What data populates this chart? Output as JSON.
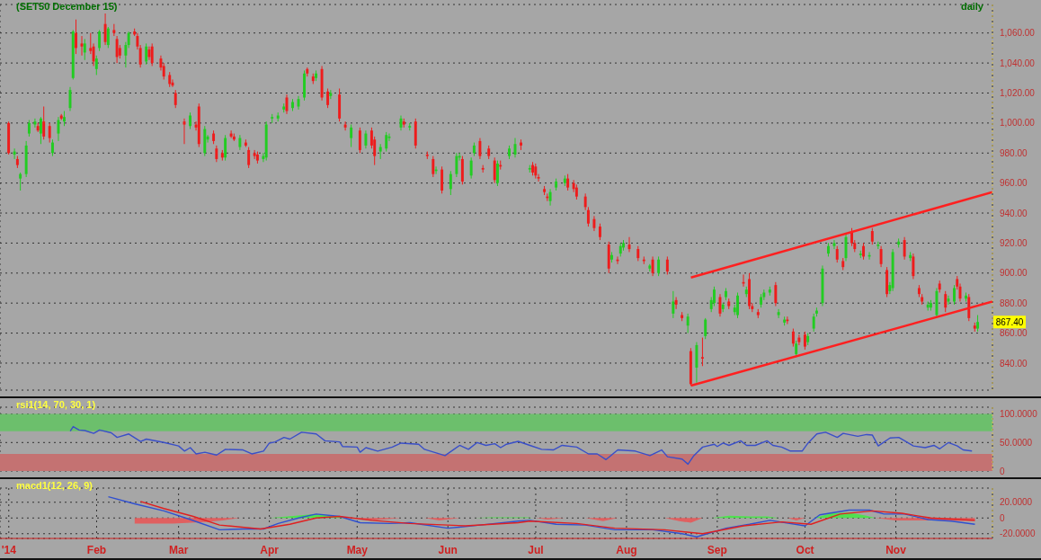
{
  "chart_data": [
    {
      "type": "candlestick",
      "title": "(SET50 December 15)",
      "annotations": [
        "daily",
        {
          "text": "867.40",
          "y": 867.4
        }
      ],
      "tick_labels": "y",
      "grid": true,
      "xlim": [
        "2013-12-30",
        "2014-12-04"
      ],
      "xticks": [
        {
          "value": "2014-01-02",
          "label": null
        },
        {
          "value": "2014-02-01",
          "label": null
        },
        {
          "value": "2014-03-01",
          "label": null
        },
        {
          "value": "2014-04-01",
          "label": null
        },
        {
          "value": "2014-05-01",
          "label": null
        },
        {
          "value": "2014-06-01",
          "label": null
        },
        {
          "value": "2014-07-01",
          "label": null
        },
        {
          "value": "2014-08-01",
          "label": null
        },
        {
          "value": "2014-09-01",
          "label": null
        },
        {
          "value": "2014-10-01",
          "label": null
        },
        {
          "value": "2014-11-01",
          "label": null
        }
      ],
      "ylim": [
        822,
        1079
      ],
      "yticks": [
        {
          "value": 840,
          "label": "840.00"
        },
        {
          "value": 860,
          "label": "860.00"
        },
        {
          "value": 880,
          "label": "880.00"
        },
        {
          "value": 900,
          "label": "900.00"
        },
        {
          "value": 920,
          "label": "920.00"
        },
        {
          "value": 940,
          "label": "940.00"
        },
        {
          "value": 960,
          "label": "960.00"
        },
        {
          "value": 980,
          "label": "980.00"
        },
        {
          "value": 1000,
          "label": "1,000.00"
        },
        {
          "value": 1020,
          "label": "1,020.00"
        },
        {
          "value": 1040,
          "label": "1,040.00"
        },
        {
          "value": 1060,
          "label": "1,060.00"
        }
      ],
      "x": [
        "2014-01-02",
        "2014-01-04",
        "2014-01-05",
        "2014-01-06",
        "2014-01-08",
        "2014-01-09",
        "2014-01-11",
        "2014-01-12",
        "2014-01-13",
        "2014-01-14",
        "2014-01-16",
        "2014-01-17",
        "2014-01-19",
        "2014-01-20",
        "2014-01-21",
        "2014-01-23",
        "2014-01-24",
        "2014-01-25",
        "2014-01-27",
        "2014-01-28",
        "2014-01-30",
        "2014-01-31",
        "2014-02-01",
        "2014-02-02",
        "2014-02-04",
        "2014-02-05",
        "2014-02-07",
        "2014-02-08",
        "2014-02-09",
        "2014-02-11",
        "2014-02-12",
        "2014-02-14",
        "2014-02-15",
        "2014-02-16",
        "2014-02-18",
        "2014-02-19",
        "2014-02-20",
        "2014-02-23",
        "2014-02-24",
        "2014-02-26",
        "2014-02-27",
        "2014-02-28",
        "2014-03-03",
        "2014-03-05",
        "2014-03-07",
        "2014-03-08",
        "2014-03-10",
        "2014-03-11",
        "2014-03-13",
        "2014-03-14",
        "2014-03-16",
        "2014-03-17",
        "2014-03-19",
        "2014-03-20",
        "2014-03-22",
        "2014-03-24",
        "2014-03-25",
        "2014-03-27",
        "2014-03-28",
        "2014-03-30",
        "2014-03-31",
        "2014-04-02",
        "2014-04-04",
        "2014-04-06",
        "2014-04-07",
        "2014-04-09",
        "2014-04-11",
        "2014-04-13",
        "2014-04-14",
        "2014-04-16",
        "2014-04-17",
        "2014-04-19",
        "2014-04-21",
        "2014-04-22",
        "2014-04-25",
        "2014-04-27",
        "2014-04-29",
        "2014-05-02",
        "2014-05-04",
        "2014-05-06",
        "2014-05-07",
        "2014-05-09",
        "2014-05-11",
        "2014-05-12",
        "2014-05-16",
        "2014-05-17",
        "2014-05-19",
        "2014-05-21",
        "2014-05-25",
        "2014-05-27",
        "2014-05-28",
        "2014-05-30",
        "2014-06-02",
        "2014-06-04",
        "2014-06-05",
        "2014-06-06",
        "2014-06-09",
        "2014-06-10",
        "2014-06-12",
        "2014-06-13",
        "2014-06-15",
        "2014-06-17",
        "2014-06-18",
        "2014-06-19",
        "2014-06-22",
        "2014-06-24",
        "2014-06-26",
        "2014-06-29",
        "2014-06-30",
        "2014-07-01",
        "2014-07-02",
        "2014-07-04",
        "2014-07-05",
        "2014-07-06",
        "2014-07-08",
        "2014-07-11",
        "2014-07-12",
        "2014-07-14",
        "2014-07-15",
        "2014-07-18",
        "2014-07-19",
        "2014-07-21",
        "2014-07-23",
        "2014-07-26",
        "2014-07-27",
        "2014-07-29",
        "2014-07-30",
        "2014-07-31",
        "2014-08-02",
        "2014-08-05",
        "2014-08-07",
        "2014-08-09",
        "2014-08-10",
        "2014-08-12",
        "2014-08-15",
        "2014-08-17",
        "2014-08-18",
        "2014-08-20",
        "2014-08-22",
        "2014-08-23",
        "2014-08-25",
        "2014-08-27",
        "2014-08-28",
        "2014-08-30",
        "2014-08-31",
        "2014-09-02",
        "2014-09-03",
        "2014-09-04",
        "2014-09-05",
        "2014-09-07",
        "2014-09-08",
        "2014-09-10",
        "2014-09-11",
        "2014-09-12",
        "2014-09-13",
        "2014-09-15",
        "2014-09-16",
        "2014-09-17",
        "2014-09-19",
        "2014-09-21",
        "2014-09-22",
        "2014-09-24",
        "2014-09-25",
        "2014-09-27",
        "2014-09-28",
        "2014-09-29",
        "2014-10-01",
        "2014-10-02",
        "2014-10-04",
        "2014-10-05",
        "2014-10-07",
        "2014-10-09",
        "2014-10-11",
        "2014-10-12",
        "2014-10-14",
        "2014-10-15",
        "2014-10-17",
        "2014-10-18",
        "2014-10-20",
        "2014-10-21",
        "2014-10-23",
        "2014-10-24",
        "2014-10-26",
        "2014-10-27",
        "2014-10-29",
        "2014-10-30",
        "2014-10-31",
        "2014-11-02",
        "2014-11-04",
        "2014-11-06",
        "2014-11-07",
        "2014-11-09",
        "2014-11-10",
        "2014-11-12",
        "2014-11-13",
        "2014-11-15",
        "2014-11-16",
        "2014-11-18",
        "2014-11-19",
        "2014-11-21",
        "2014-11-22",
        "2014-11-23",
        "2014-11-25",
        "2014-11-26",
        "2014-11-28",
        "2014-11-29"
      ],
      "ohlc": [
        [
          1000,
          1001,
          979,
          980
        ],
        [
          979,
          983,
          976,
          981
        ],
        [
          976,
          978,
          970,
          972
        ],
        [
          963,
          967,
          955,
          966
        ],
        [
          966,
          988,
          964,
          985
        ],
        [
          993,
          1002,
          991,
          1000
        ],
        [
          999,
          1003,
          997,
          1001
        ],
        [
          998,
          1000,
          994,
          995
        ],
        [
          993,
          1004,
          986,
          1003
        ],
        [
          1001,
          1011,
          989,
          991
        ],
        [
          998,
          1000,
          987,
          990
        ],
        [
          980,
          989,
          978,
          987
        ],
        [
          993,
          1004,
          988,
          1002
        ],
        [
          1005,
          1006,
          1002,
          1003
        ],
        [
          1001,
          1008,
          998,
          1004
        ],
        [
          1010,
          1024,
          1008,
          1022
        ],
        [
          1030,
          1062,
          1029,
          1061
        ],
        [
          1060,
          1069,
          1046,
          1050
        ],
        [
          1053,
          1058,
          1045,
          1051
        ],
        [
          1047,
          1056,
          1042,
          1053
        ],
        [
          1050,
          1060,
          1046,
          1048
        ],
        [
          1051,
          1053,
          1038,
          1041
        ],
        [
          1036,
          1045,
          1032,
          1043
        ],
        [
          1050,
          1062,
          1048,
          1061
        ],
        [
          1066,
          1073,
          1052,
          1054
        ],
        [
          1052,
          1064,
          1050,
          1063
        ],
        [
          1062,
          1066,
          1058,
          1060
        ],
        [
          1056,
          1058,
          1040,
          1044
        ],
        [
          1050,
          1052,
          1043,
          1045
        ],
        [
          1045,
          1054,
          1037,
          1052
        ],
        [
          1052,
          1061,
          1050,
          1060
        ],
        [
          1061,
          1063,
          1058,
          1059
        ],
        [
          1058,
          1060,
          1049,
          1051
        ],
        [
          1050,
          1052,
          1037,
          1039
        ],
        [
          1041,
          1053,
          1039,
          1051
        ],
        [
          1049,
          1051,
          1042,
          1044
        ],
        [
          1051,
          1053,
          1038,
          1040
        ],
        [
          1043,
          1045,
          1035,
          1037
        ],
        [
          1038,
          1040,
          1029,
          1031
        ],
        [
          1032,
          1034,
          1024,
          1026
        ],
        [
          1027,
          1029,
          1024,
          1025
        ],
        [
          1020,
          1022,
          1010,
          1012
        ],
        [
          1001,
          1003,
          986,
          999
        ],
        [
          998,
          1007,
          996,
          1005
        ],
        [
          999,
          1001,
          995,
          997
        ],
        [
          1011,
          1013,
          984,
          986
        ],
        [
          980,
          998,
          978,
          996
        ],
        [
          989,
          992,
          987,
          991
        ],
        [
          993,
          995,
          986,
          988
        ],
        [
          983,
          985,
          974,
          976
        ],
        [
          980,
          982,
          975,
          977
        ],
        [
          977,
          992,
          975,
          990
        ],
        [
          993,
          995,
          990,
          991
        ],
        [
          991,
          993,
          988,
          989
        ],
        [
          984,
          992,
          982,
          990
        ],
        [
          987,
          989,
          984,
          985
        ],
        [
          982,
          984,
          970,
          972
        ],
        [
          980,
          982,
          976,
          978
        ],
        [
          979,
          981,
          973,
          975
        ],
        [
          976,
          980,
          974,
          978
        ],
        [
          977,
          1001,
          975,
          999
        ],
        [
          1003,
          1006,
          1000,
          1004
        ],
        [
          1003,
          1007,
          1001,
          1005
        ],
        [
          1009,
          1013,
          1007,
          1011
        ],
        [
          1017,
          1019,
          1006,
          1008
        ],
        [
          1010,
          1016,
          1008,
          1014
        ],
        [
          1011,
          1018,
          1009,
          1016
        ],
        [
          1017,
          1035,
          1015,
          1033
        ],
        [
          1036,
          1037,
          1031,
          1033
        ],
        [
          1031,
          1033,
          1026,
          1028
        ],
        [
          1030,
          1035,
          1028,
          1033
        ],
        [
          1036,
          1038,
          1015,
          1017
        ],
        [
          1021,
          1023,
          1010,
          1012
        ],
        [
          1018,
          1022,
          1016,
          1020
        ],
        [
          1019,
          1023,
          1001,
          1003
        ],
        [
          999,
          1001,
          995,
          997
        ],
        [
          990,
          999,
          984,
          997
        ],
        [
          995,
          997,
          980,
          982
        ],
        [
          985,
          995,
          983,
          993
        ],
        [
          995,
          997,
          983,
          985
        ],
        [
          989,
          991,
          972,
          978
        ],
        [
          981,
          986,
          976,
          984
        ],
        [
          983,
          994,
          981,
          992
        ],
        [
          990,
          993,
          988,
          991
        ],
        [
          997,
          1005,
          995,
          1003
        ],
        [
          1001,
          1003,
          997,
          999
        ],
        [
          997,
          1000,
          995,
          998
        ],
        [
          1001,
          1003,
          983,
          985
        ],
        [
          979,
          981,
          976,
          978
        ],
        [
          976,
          978,
          964,
          966
        ],
        [
          968,
          971,
          966,
          969
        ],
        [
          969,
          971,
          953,
          955
        ],
        [
          956,
          968,
          952,
          966
        ],
        [
          966,
          980,
          964,
          978
        ],
        [
          977,
          980,
          975,
          978
        ],
        [
          976,
          978,
          959,
          961
        ],
        [
          965,
          977,
          963,
          975
        ],
        [
          980,
          987,
          978,
          985
        ],
        [
          988,
          990,
          976,
          978
        ],
        [
          970,
          972,
          967,
          969
        ],
        [
          983,
          985,
          976,
          978
        ],
        [
          975,
          977,
          960,
          962
        ],
        [
          960,
          975,
          958,
          973
        ],
        [
          972,
          975,
          969,
          971
        ],
        [
          978,
          985,
          976,
          983
        ],
        [
          979,
          990,
          977,
          986
        ],
        [
          987,
          989,
          982,
          985
        ],
        [
          969,
          972,
          967,
          970
        ],
        [
          972,
          974,
          965,
          967
        ],
        [
          971,
          973,
          963,
          965
        ],
        [
          964,
          966,
          961,
          963
        ],
        [
          956,
          958,
          952,
          954
        ],
        [
          951,
          953,
          948,
          950
        ],
        [
          948,
          956,
          945,
          954
        ],
        [
          957,
          963,
          955,
          961
        ],
        [
          960,
          965,
          958,
          963
        ],
        [
          963,
          966,
          955,
          957
        ],
        [
          960,
          962,
          954,
          956
        ],
        [
          957,
          959,
          949,
          951
        ],
        [
          951,
          953,
          942,
          944
        ],
        [
          942,
          944,
          931,
          933
        ],
        [
          936,
          938,
          928,
          930
        ],
        [
          931,
          933,
          922,
          924
        ],
        [
          919,
          921,
          900,
          903
        ],
        [
          909,
          914,
          907,
          912
        ],
        [
          909,
          911,
          906,
          908
        ],
        [
          913,
          920,
          911,
          918
        ],
        [
          917,
          922,
          915,
          920
        ],
        [
          919,
          924,
          914,
          916
        ],
        [
          916,
          918,
          908,
          910
        ],
        [
          909,
          911,
          906,
          908
        ],
        [
          903,
          906,
          901,
          905
        ],
        [
          909,
          911,
          898,
          900
        ],
        [
          900,
          911,
          898,
          909
        ],
        [
          909,
          911,
          899,
          901
        ],
        [
          873,
          888,
          870,
          881
        ],
        [
          882,
          884,
          876,
          879
        ],
        [
          872,
          874,
          868,
          870
        ],
        [
          865,
          873,
          860,
          871
        ],
        [
          848,
          850,
          825,
          826
        ],
        [
          837,
          854,
          827,
          852
        ],
        [
          844,
          857,
          838,
          843
        ],
        [
          858,
          870,
          856,
          869
        ],
        [
          876,
          884,
          874,
          882
        ],
        [
          880,
          891,
          878,
          889
        ],
        [
          884,
          886,
          871,
          873
        ],
        [
          876,
          880,
          874,
          879
        ],
        [
          884,
          890,
          882,
          888
        ],
        [
          881,
          883,
          876,
          878
        ],
        [
          874,
          879,
          872,
          877
        ],
        [
          872,
          887,
          870,
          885
        ],
        [
          894,
          899,
          891,
          893
        ],
        [
          886,
          891,
          884,
          889
        ],
        [
          896,
          900,
          876,
          878
        ],
        [
          878,
          880,
          874,
          876
        ],
        [
          874,
          876,
          870,
          872
        ],
        [
          879,
          886,
          877,
          884
        ],
        [
          884,
          889,
          882,
          887
        ],
        [
          887,
          891,
          885,
          889
        ],
        [
          892,
          894,
          878,
          880
        ],
        [
          872,
          876,
          870,
          874
        ],
        [
          867,
          871,
          865,
          869
        ],
        [
          869,
          871,
          866,
          868
        ],
        [
          861,
          863,
          851,
          853
        ],
        [
          846,
          855,
          844,
          853
        ],
        [
          857,
          859,
          852,
          854
        ],
        [
          859,
          861,
          849,
          851
        ],
        [
          854,
          860,
          852,
          858
        ],
        [
          863,
          873,
          861,
          871
        ],
        [
          873,
          877,
          871,
          875
        ],
        [
          880,
          905,
          878,
          903
        ],
        [
          913,
          920,
          911,
          918
        ],
        [
          918,
          922,
          916,
          920
        ],
        [
          916,
          918,
          907,
          909
        ],
        [
          908,
          910,
          902,
          904
        ],
        [
          910,
          926,
          908,
          924
        ],
        [
          927,
          930,
          918,
          920
        ],
        [
          920,
          922,
          914,
          916
        ],
        [
          912,
          915,
          910,
          913
        ],
        [
          918,
          920,
          909,
          911
        ],
        [
          911,
          914,
          909,
          912
        ],
        [
          928,
          930,
          919,
          921
        ],
        [
          918,
          921,
          916,
          919
        ],
        [
          916,
          918,
          904,
          906
        ],
        [
          902,
          904,
          884,
          886
        ],
        [
          888,
          894,
          886,
          892
        ],
        [
          890,
          916,
          888,
          914
        ],
        [
          919,
          923,
          917,
          921
        ],
        [
          922,
          924,
          909,
          911
        ],
        [
          910,
          914,
          908,
          912
        ],
        [
          911,
          913,
          896,
          898
        ],
        [
          890,
          892,
          884,
          886
        ],
        [
          884,
          886,
          879,
          881
        ],
        [
          877,
          881,
          875,
          879
        ],
        [
          877,
          882,
          875,
          880
        ],
        [
          872,
          890,
          870,
          888
        ],
        [
          893,
          895,
          887,
          889
        ],
        [
          886,
          888,
          874,
          877
        ],
        [
          881,
          885,
          879,
          883
        ],
        [
          881,
          892,
          879,
          890
        ],
        [
          896,
          898,
          889,
          891
        ],
        [
          891,
          893,
          881,
          883
        ],
        [
          883,
          887,
          881,
          885
        ],
        [
          884,
          886,
          868,
          870
        ],
        [
          865,
          867,
          861,
          863
        ],
        [
          863,
          872,
          861,
          867.4
        ]
      ],
      "series": [
        {
          "type": "line",
          "color": "#ff2020",
          "x": [
            "2014-08-23",
            "2014-12-04"
          ],
          "values": [
            897,
            954
          ]
        },
        {
          "type": "line",
          "color": "#ff2020",
          "x": [
            "2014-08-23",
            "2014-12-04"
          ],
          "values": [
            825,
            881
          ]
        }
      ]
    },
    {
      "type": "line",
      "title": "rsi1(14, 70, 30, 1)",
      "tick_labels": "y",
      "grid": true,
      "xlim": [
        "2013-12-30",
        "2014-12-04"
      ],
      "xticks": [
        {
          "value": "2014-01-02",
          "label": null
        },
        {
          "value": "2014-02-01",
          "label": null
        },
        {
          "value": "2014-03-01",
          "label": null
        },
        {
          "value": "2014-04-01",
          "label": null
        },
        {
          "value": "2014-05-01",
          "label": null
        },
        {
          "value": "2014-06-01",
          "label": null
        },
        {
          "value": "2014-07-01",
          "label": null
        },
        {
          "value": "2014-08-01",
          "label": null
        },
        {
          "value": "2014-09-01",
          "label": null
        },
        {
          "value": "2014-10-01",
          "label": null
        },
        {
          "value": "2014-11-01",
          "label": null
        }
      ],
      "ylim": [
        0,
        112
      ],
      "yticks": [
        0,
        {
          "value": 50,
          "label": "50.0000"
        },
        {
          "value": 100,
          "label": "100.0000"
        }
      ],
      "bands": [
        {
          "axis": "y",
          "from": 70,
          "to": 100,
          "color": "#6cbf6c"
        },
        {
          "axis": "y",
          "from": 0,
          "to": 30,
          "color": "#c47272"
        }
      ],
      "series": [
        {
          "color": "#3a4fc8",
          "x": [
            "2014-01-23",
            "2014-01-24",
            "2014-01-26",
            "2014-01-28",
            "2014-01-31",
            "2014-02-02",
            "2014-02-06",
            "2014-02-08",
            "2014-02-12",
            "2014-02-16",
            "2014-02-18",
            "2014-02-24",
            "2014-03-01",
            "2014-03-03",
            "2014-03-05",
            "2014-03-07",
            "2014-03-10",
            "2014-03-14",
            "2014-03-17",
            "2014-03-23",
            "2014-03-26",
            "2014-03-30",
            "2014-04-01",
            "2014-04-03",
            "2014-04-06",
            "2014-04-08",
            "2014-04-12",
            "2014-04-17",
            "2014-04-20",
            "2014-04-25",
            "2014-04-26",
            "2014-05-01",
            "2014-05-02",
            "2014-05-04",
            "2014-05-08",
            "2014-05-13",
            "2014-05-16",
            "2014-05-22",
            "2014-05-24",
            "2014-05-31",
            "2014-06-05",
            "2014-06-08",
            "2014-06-11",
            "2014-06-14",
            "2014-06-17",
            "2014-06-19",
            "2014-06-21",
            "2014-06-25",
            "2014-06-29",
            "2014-07-03",
            "2014-07-07",
            "2014-07-10",
            "2014-07-15",
            "2014-07-19",
            "2014-07-22",
            "2014-07-25",
            "2014-07-29",
            "2014-08-04",
            "2014-08-09",
            "2014-08-13",
            "2014-08-15",
            "2014-08-20",
            "2014-08-22",
            "2014-08-24",
            "2014-08-27",
            "2014-08-31",
            "2014-09-01",
            "2014-09-03",
            "2014-09-05",
            "2014-09-09",
            "2014-09-11",
            "2014-09-14",
            "2014-09-18",
            "2014-09-20",
            "2014-09-23",
            "2014-09-26",
            "2014-09-30",
            "2014-10-02",
            "2014-10-05",
            "2014-10-08",
            "2014-10-12",
            "2014-10-14",
            "2014-10-19",
            "2014-10-22",
            "2014-10-24",
            "2014-10-26",
            "2014-10-30",
            "2014-11-02",
            "2014-11-04",
            "2014-11-07",
            "2014-11-11",
            "2014-11-14",
            "2014-11-16",
            "2014-11-19",
            "2014-11-22",
            "2014-11-24",
            "2014-11-27"
          ],
          "values": [
            70,
            78,
            72,
            71,
            66,
            72,
            67,
            59,
            65,
            52,
            56,
            50,
            44,
            35,
            41,
            30,
            33,
            28,
            38,
            37,
            30,
            35,
            49,
            51,
            59,
            56,
            68,
            65,
            53,
            51,
            43,
            42,
            33,
            41,
            35,
            42,
            49,
            47,
            38,
            27,
            45,
            38,
            50,
            45,
            48,
            41,
            47,
            52,
            45,
            38,
            37,
            45,
            42,
            30,
            30,
            20,
            37,
            35,
            27,
            37,
            25,
            21,
            12,
            27,
            42,
            47,
            43,
            49,
            45,
            53,
            45,
            45,
            53,
            45,
            42,
            35,
            35,
            49,
            65,
            68,
            59,
            66,
            61,
            64,
            63,
            44,
            58,
            59,
            53,
            44,
            41,
            45,
            39,
            50,
            44,
            37,
            35
          ]
        }
      ]
    },
    {
      "type": "line",
      "title": "macd1(12, 26, 9)",
      "grid": true,
      "xlim": [
        "2013-12-30",
        "2014-12-04"
      ],
      "xticks": [
        {
          "value": "2014-01-02",
          "label": "'14"
        },
        {
          "value": "2014-02-01",
          "label": "Feb"
        },
        {
          "value": "2014-03-01",
          "label": "Mar"
        },
        {
          "value": "2014-04-01",
          "label": "Apr"
        },
        {
          "value": "2014-05-01",
          "label": "May"
        },
        {
          "value": "2014-06-01",
          "label": "Jun"
        },
        {
          "value": "2014-07-01",
          "label": "Jul"
        },
        {
          "value": "2014-08-01",
          "label": "Aug"
        },
        {
          "value": "2014-09-01",
          "label": "Sep"
        },
        {
          "value": "2014-10-01",
          "label": "Oct"
        },
        {
          "value": "2014-11-01",
          "label": "Nov"
        }
      ],
      "ylim": [
        -26,
        38
      ],
      "yticks": [
        {
          "value": -20,
          "label": "-20.0000"
        },
        0,
        {
          "value": 20,
          "label": "20.0000"
        }
      ],
      "series": [
        {
          "type": "area",
          "color": "#e06060",
          "x": [
            "2014-02-14",
            "2014-02-27",
            "2014-03-10",
            "2014-03-16",
            "2014-03-22",
            "2014-03-25",
            "2014-04-30",
            "2014-05-06",
            "2014-05-16",
            "2014-05-20",
            "2014-05-24",
            "2014-05-29",
            "2014-06-05",
            "2014-06-08",
            "2014-07-01",
            "2014-07-05",
            "2014-07-11",
            "2014-07-15",
            "2014-07-18",
            "2014-07-24",
            "2014-07-29",
            "2014-08-05",
            "2014-08-14",
            "2014-08-19",
            "2014-08-23",
            "2014-08-27",
            "2014-08-30",
            "2014-09-25",
            "2014-09-28",
            "2014-10-01",
            "2014-10-15",
            "2014-10-25",
            "2014-11-01",
            "2014-11-15",
            "2014-11-28"
          ],
          "values": [
            -7,
            -7,
            -5,
            -3,
            0,
            null,
            0,
            -3,
            0,
            null,
            0,
            -3,
            0,
            null,
            0,
            -2,
            0,
            null,
            0,
            -4,
            0,
            null,
            0,
            -4,
            -6,
            0,
            null,
            0,
            -3,
            0,
            null,
            0,
            -3,
            -3,
            -4
          ]
        },
        {
          "type": "area",
          "color": "#50e050",
          "x": [
            "2014-04-01",
            "2014-04-10",
            "2014-04-16",
            "2014-04-22",
            "2014-04-28",
            "2014-05-05",
            "2014-06-10",
            "2014-06-16",
            "2014-06-28",
            "2014-06-30",
            "2014-07-10",
            "2014-08-30",
            "2014-09-05",
            "2014-09-12",
            "2014-09-18",
            "2014-09-22",
            "2014-09-27",
            "2014-10-04",
            "2014-10-10",
            "2014-10-16",
            "2014-10-22",
            "2014-10-25"
          ],
          "values": [
            0,
            3,
            5,
            3,
            0,
            null,
            0,
            1,
            1,
            0,
            null,
            0,
            3,
            2,
            2,
            0,
            null,
            0,
            6,
            7,
            3,
            0
          ]
        },
        {
          "type": "line",
          "color": "#3050d0",
          "x": [
            "2014-02-05",
            "2014-02-14",
            "2014-02-24",
            "2014-03-05",
            "2014-03-15",
            "2014-03-23",
            "2014-03-30",
            "2014-04-04",
            "2014-04-11",
            "2014-04-17",
            "2014-04-25",
            "2014-05-02",
            "2014-05-12",
            "2014-05-19",
            "2014-06-01",
            "2014-06-12",
            "2014-06-25",
            "2014-06-29",
            "2014-07-08",
            "2014-07-18",
            "2014-07-28",
            "2014-08-10",
            "2014-08-20",
            "2014-08-25",
            "2014-09-04",
            "2014-09-12",
            "2014-09-19",
            "2014-10-01",
            "2014-10-06",
            "2014-10-16",
            "2014-10-23",
            "2014-10-28",
            "2014-11-04",
            "2014-11-12",
            "2014-11-20",
            "2014-11-28"
          ],
          "values": [
            27,
            18,
            9,
            -2,
            -15,
            -14,
            -14,
            -7,
            0,
            5,
            2,
            -6,
            -7,
            -6,
            -13,
            -9,
            -4,
            -3,
            -8,
            -9,
            -15,
            -15,
            -20,
            -24,
            -13,
            -8,
            -3,
            -10,
            4,
            10,
            10,
            5,
            5,
            -2,
            -4,
            -8
          ]
        },
        {
          "type": "line",
          "color": "#e02020",
          "x": [
            "2014-02-16",
            "2014-02-24",
            "2014-03-06",
            "2014-03-15",
            "2014-03-29",
            "2014-04-08",
            "2014-04-17",
            "2014-04-25",
            "2014-05-06",
            "2014-05-19",
            "2014-06-07",
            "2014-06-25",
            "2014-06-29",
            "2014-07-15",
            "2014-07-28",
            "2014-08-14",
            "2014-08-27",
            "2014-09-10",
            "2014-09-23",
            "2014-10-03",
            "2014-10-13",
            "2014-10-24",
            "2014-11-03",
            "2014-11-13",
            "2014-11-28"
          ],
          "values": [
            21,
            12,
            2,
            -9,
            -14,
            -8,
            0,
            2,
            -3,
            -7,
            -10,
            -6,
            -4,
            -7,
            -13,
            -15,
            -20,
            -10,
            -5,
            -8,
            5,
            9,
            6,
            0,
            -3
          ]
        }
      ]
    }
  ]
}
